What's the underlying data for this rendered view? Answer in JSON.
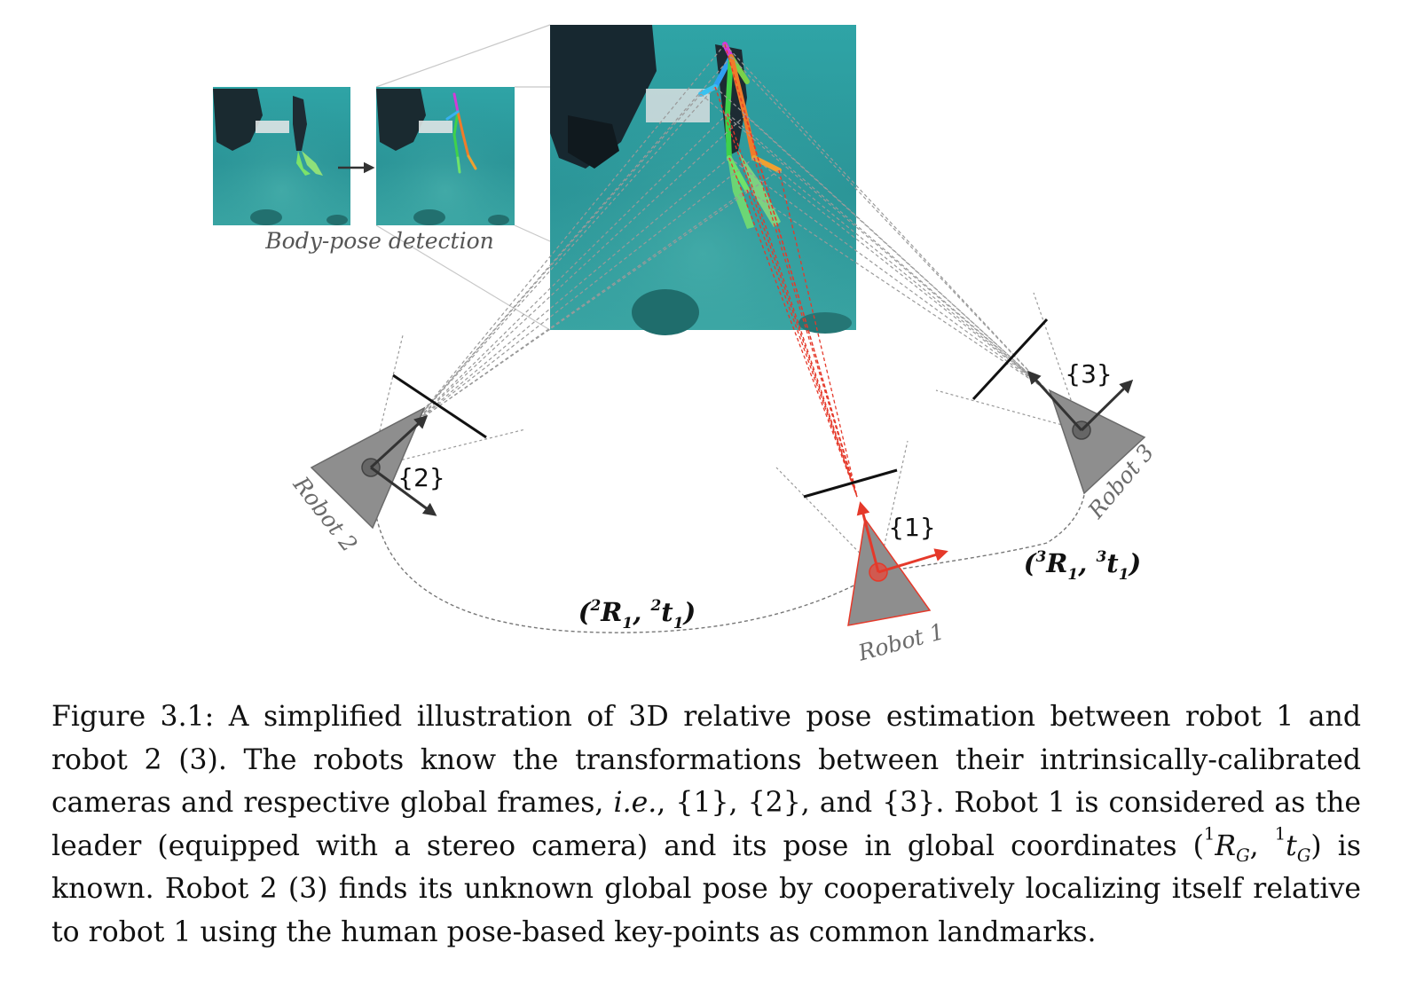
{
  "figure": {
    "photo_caption": "Body-pose detection",
    "frames": [
      "{1}",
      "{2}",
      "{3}"
    ],
    "robots": [
      "Robot 1",
      "Robot 2",
      "Robot 3"
    ],
    "transform_2": {
      "open": "(",
      "sup": "2",
      "R": "R",
      "R_sub": "1",
      "sep": ", ",
      "sup2": "2",
      "t": "t",
      "t_sub": "1",
      "close": ")"
    },
    "transform_3": {
      "open": "(",
      "sup": "3",
      "R": "R",
      "R_sub": "1",
      "sep": ", ",
      "sup2": "3",
      "t": "t",
      "t_sub": "1",
      "close": ")"
    },
    "colors": {
      "water": "#2e9c9e",
      "water_dark": "#1d7476",
      "leader_red": "#e5392a",
      "robot_gray": "#8e8e8e",
      "label_gray": "#6b6b6b"
    }
  },
  "caption": {
    "p1": "Figure 3.1: A simplified illustration of 3D relative pose estimation between robot 1 and robot 2 (3). The robots know the transformations between their intrinsically-calibrated cameras and respective global frames, ",
    "ie": "i.e.",
    "p2": ", {1}, {2}, and {3}. Robot 1 is considered as the leader (equipped with a stereo camera) and its pose in global coordinates (",
    "rg_sup": "1",
    "rg_base": "R",
    "rg_sub": "G",
    "p3": ", ",
    "tg_sup": "1",
    "tg_base": "t",
    "tg_sub": "G",
    "p4": ") is known. Robot 2 (3) finds its unknown global pose by cooperatively localizing itself relative to robot 1 using the human pose-based key-points as common landmarks."
  }
}
